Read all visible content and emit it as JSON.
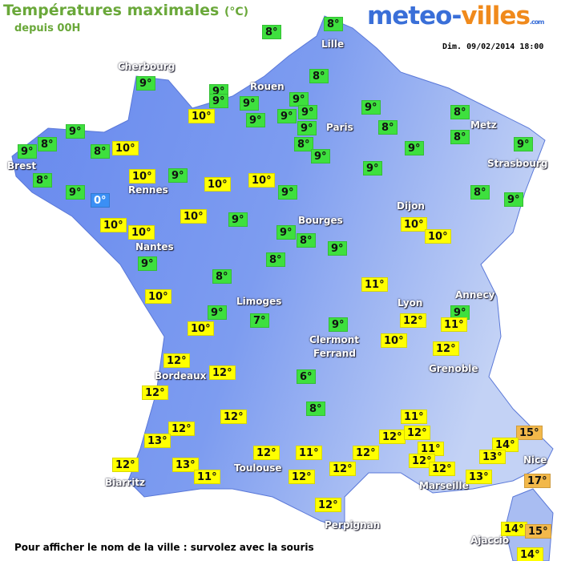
{
  "header": {
    "title": "Températures maximales",
    "unit": "(°C)",
    "subtitle": "depuis 00H",
    "logo_left": "meteo-",
    "logo_right": "villes",
    "logo_small": ".com",
    "date": "Dim. 09/02/2014 18:00"
  },
  "cities": [
    "Cherbourg",
    "Lille",
    "Rouen",
    "Paris",
    "Metz",
    "Strasbourg",
    "Brest",
    "Rennes",
    "Dijon",
    "Bourges",
    "Nantes",
    "Limoges",
    "Annecy",
    "Lyon",
    "Clermont",
    "Ferrand",
    "Grenoble",
    "Bordeaux",
    "Toulouse",
    "Nice",
    "Biarritz",
    "Marseille",
    "Perpignan",
    "Ajaccio"
  ],
  "colors": {
    "green": "#3ee03e",
    "yellow": "#ffff00",
    "orange": "#f2b84a",
    "blue": "#3b8ff5"
  },
  "readings": [
    {
      "label": "8°",
      "color": "green"
    },
    {
      "label": "8°",
      "color": "green"
    },
    {
      "label": "9°",
      "color": "green"
    },
    {
      "label": "9°",
      "color": "green"
    },
    {
      "label": "9°",
      "color": "green"
    },
    {
      "label": "10°",
      "color": "yellow"
    },
    {
      "label": "9°",
      "color": "green"
    },
    {
      "label": "9°",
      "color": "green"
    },
    {
      "label": "8°",
      "color": "green"
    },
    {
      "label": "9°",
      "color": "green"
    },
    {
      "label": "9°",
      "color": "green"
    },
    {
      "label": "9°",
      "color": "green"
    },
    {
      "label": "9°",
      "color": "green"
    },
    {
      "label": "8°",
      "color": "green"
    },
    {
      "label": "9°",
      "color": "green"
    },
    {
      "label": "9°",
      "color": "green"
    },
    {
      "label": "8°",
      "color": "green"
    },
    {
      "label": "8°",
      "color": "green"
    },
    {
      "label": "8°",
      "color": "green"
    },
    {
      "label": "9°",
      "color": "green"
    },
    {
      "label": "9°",
      "color": "green"
    },
    {
      "label": "9°",
      "color": "green"
    },
    {
      "label": "9°",
      "color": "green"
    },
    {
      "label": "8°",
      "color": "green"
    },
    {
      "label": "9°",
      "color": "green"
    },
    {
      "label": "8°",
      "color": "green"
    },
    {
      "label": "10°",
      "color": "yellow"
    },
    {
      "label": "8°",
      "color": "green"
    },
    {
      "label": "9°",
      "color": "green"
    },
    {
      "label": "0°",
      "color": "blue"
    },
    {
      "label": "10°",
      "color": "yellow"
    },
    {
      "label": "9°",
      "color": "green"
    },
    {
      "label": "10°",
      "color": "yellow"
    },
    {
      "label": "10°",
      "color": "yellow"
    },
    {
      "label": "9°",
      "color": "green"
    },
    {
      "label": "8°",
      "color": "green"
    },
    {
      "label": "9°",
      "color": "green"
    },
    {
      "label": "10°",
      "color": "yellow"
    },
    {
      "label": "9°",
      "color": "green"
    },
    {
      "label": "10°",
      "color": "yellow"
    },
    {
      "label": "10°",
      "color": "yellow"
    },
    {
      "label": "9°",
      "color": "green"
    },
    {
      "label": "8°",
      "color": "green"
    },
    {
      "label": "9°",
      "color": "green"
    },
    {
      "label": "10°",
      "color": "yellow"
    },
    {
      "label": "10°",
      "color": "yellow"
    },
    {
      "label": "9°",
      "color": "green"
    },
    {
      "label": "8°",
      "color": "green"
    },
    {
      "label": "8°",
      "color": "green"
    },
    {
      "label": "11°",
      "color": "yellow"
    },
    {
      "label": "10°",
      "color": "yellow"
    },
    {
      "label": "9°",
      "color": "green"
    },
    {
      "label": "10°",
      "color": "yellow"
    },
    {
      "label": "7°",
      "color": "green"
    },
    {
      "label": "9°",
      "color": "green"
    },
    {
      "label": "9°",
      "color": "green"
    },
    {
      "label": "12°",
      "color": "yellow"
    },
    {
      "label": "11°",
      "color": "yellow"
    },
    {
      "label": "10°",
      "color": "yellow"
    },
    {
      "label": "12°",
      "color": "yellow"
    },
    {
      "label": "12°",
      "color": "yellow"
    },
    {
      "label": "12°",
      "color": "yellow"
    },
    {
      "label": "6°",
      "color": "green"
    },
    {
      "label": "12°",
      "color": "yellow"
    },
    {
      "label": "8°",
      "color": "green"
    },
    {
      "label": "12°",
      "color": "yellow"
    },
    {
      "label": "11°",
      "color": "yellow"
    },
    {
      "label": "12°",
      "color": "yellow"
    },
    {
      "label": "13°",
      "color": "yellow"
    },
    {
      "label": "12°",
      "color": "yellow"
    },
    {
      "label": "12°",
      "color": "yellow"
    },
    {
      "label": "15°",
      "color": "orange"
    },
    {
      "label": "14°",
      "color": "yellow"
    },
    {
      "label": "11°",
      "color": "yellow"
    },
    {
      "label": "12°",
      "color": "yellow"
    },
    {
      "label": "11°",
      "color": "yellow"
    },
    {
      "label": "12°",
      "color": "yellow"
    },
    {
      "label": "12°",
      "color": "yellow"
    },
    {
      "label": "13°",
      "color": "yellow"
    },
    {
      "label": "12°",
      "color": "yellow"
    },
    {
      "label": "13°",
      "color": "yellow"
    },
    {
      "label": "12°",
      "color": "yellow"
    },
    {
      "label": "12°",
      "color": "yellow"
    },
    {
      "label": "11°",
      "color": "yellow"
    },
    {
      "label": "12°",
      "color": "yellow"
    },
    {
      "label": "13°",
      "color": "yellow"
    },
    {
      "label": "17°",
      "color": "orange"
    },
    {
      "label": "12°",
      "color": "yellow"
    },
    {
      "label": "14°",
      "color": "yellow"
    },
    {
      "label": "15°",
      "color": "orange"
    },
    {
      "label": "14°",
      "color": "yellow"
    }
  ],
  "footer": "Pour afficher le nom de la ville : survolez avec la souris"
}
